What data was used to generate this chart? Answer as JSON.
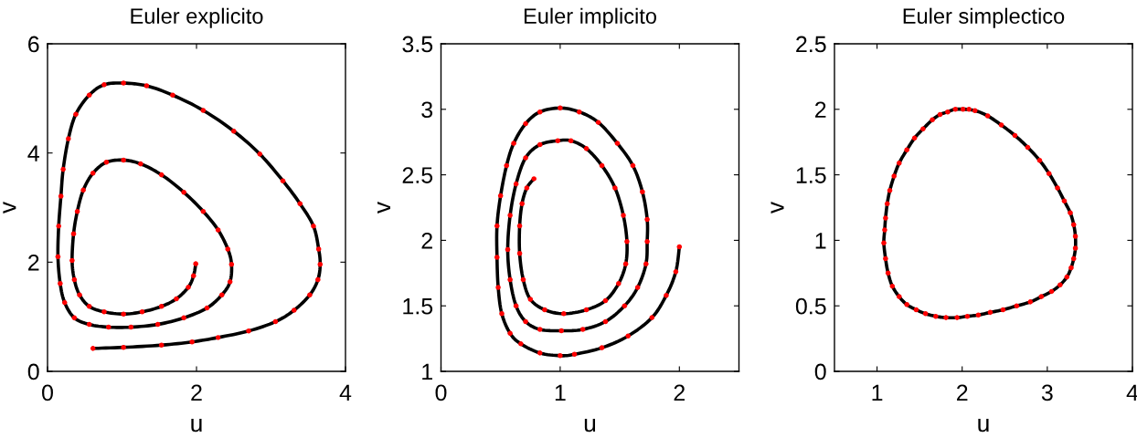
{
  "chart_data": [
    {
      "type": "line",
      "title": "Euler explicito",
      "xlabel": "u",
      "ylabel": "v",
      "xlim": [
        0,
        4
      ],
      "ylim": [
        0,
        6
      ],
      "xticks": [
        0,
        2,
        4
      ],
      "yticks": [
        0,
        2,
        4,
        6
      ],
      "series": [
        {
          "color": "#000000",
          "x": [
            1.99,
            1.96,
            1.89,
            1.73,
            1.53,
            1.27,
            1.02,
            0.76,
            0.56,
            0.43,
            0.36,
            0.33,
            0.35,
            0.4,
            0.48,
            0.61,
            0.79,
            1.02,
            1.25,
            1.53,
            1.83,
            2.09,
            2.29,
            2.42,
            2.47,
            2.45,
            2.34,
            2.14,
            1.83,
            1.48,
            1.12,
            0.82,
            0.56,
            0.36,
            0.23,
            0.17,
            0.14,
            0.15,
            0.18,
            0.21,
            0.28,
            0.38,
            0.56,
            0.76,
            1.02,
            1.33,
            1.68,
            2.09,
            2.5,
            2.85,
            3.16,
            3.39,
            3.57,
            3.64,
            3.66,
            3.63,
            3.52,
            3.31,
            3.06,
            2.7,
            2.29,
            1.94,
            1.53,
            1.02,
            0.61
          ],
          "values": [
            1.97,
            1.75,
            1.54,
            1.33,
            1.19,
            1.09,
            1.05,
            1.09,
            1.19,
            1.4,
            1.68,
            2.03,
            2.52,
            2.93,
            3.32,
            3.63,
            3.83,
            3.87,
            3.8,
            3.6,
            3.28,
            2.93,
            2.59,
            2.24,
            1.96,
            1.64,
            1.4,
            1.16,
            0.98,
            0.86,
            0.81,
            0.81,
            0.86,
            0.98,
            1.26,
            1.61,
            2.1,
            2.66,
            3.21,
            3.7,
            4.26,
            4.71,
            5.06,
            5.25,
            5.28,
            5.23,
            5.06,
            4.78,
            4.4,
            3.98,
            3.49,
            3.07,
            2.66,
            2.24,
            1.96,
            1.68,
            1.4,
            1.12,
            0.91,
            0.74,
            0.62,
            0.54,
            0.48,
            0.44,
            0.42
          ]
        },
        {
          "type": "scatter",
          "color": "#ff0000",
          "marker": "circle",
          "x": [
            1.99,
            1.96,
            1.89,
            1.73,
            1.53,
            1.27,
            1.02,
            0.76,
            0.56,
            0.43,
            0.36,
            0.33,
            0.35,
            0.4,
            0.48,
            0.61,
            0.79,
            1.02,
            1.25,
            1.53,
            1.83,
            2.09,
            2.29,
            2.42,
            2.47,
            2.45,
            2.34,
            2.14,
            1.83,
            1.48,
            1.12,
            0.82,
            0.56,
            0.36,
            0.23,
            0.17,
            0.14,
            0.15,
            0.18,
            0.21,
            0.28,
            0.38,
            0.56,
            0.76,
            1.02,
            1.33,
            1.68,
            2.09,
            2.5,
            2.85,
            3.16,
            3.39,
            3.57,
            3.64,
            3.66,
            3.63,
            3.52,
            3.31,
            3.06,
            2.7,
            2.29,
            1.94,
            1.53,
            1.02,
            0.61
          ],
          "values": [
            1.97,
            1.75,
            1.54,
            1.33,
            1.19,
            1.09,
            1.05,
            1.09,
            1.19,
            1.4,
            1.68,
            2.03,
            2.52,
            2.93,
            3.32,
            3.63,
            3.83,
            3.87,
            3.8,
            3.6,
            3.28,
            2.93,
            2.59,
            2.24,
            1.96,
            1.64,
            1.4,
            1.16,
            0.98,
            0.86,
            0.81,
            0.81,
            0.86,
            0.98,
            1.26,
            1.61,
            2.1,
            2.66,
            3.21,
            3.7,
            4.26,
            4.71,
            5.06,
            5.25,
            5.28,
            5.23,
            5.06,
            4.78,
            4.4,
            3.98,
            3.49,
            3.07,
            2.66,
            2.24,
            1.96,
            1.68,
            1.4,
            1.12,
            0.91,
            0.74,
            0.62,
            0.54,
            0.48,
            0.44,
            0.42
          ]
        }
      ]
    },
    {
      "type": "line",
      "title": "Euler implicito",
      "xlabel": "u",
      "ylabel": "v",
      "xlim": [
        0,
        2.5
      ],
      "ylim": [
        1,
        3.5
      ],
      "xticks": [
        0,
        1,
        2
      ],
      "yticks": [
        1,
        1.5,
        2,
        2.5,
        3,
        3.5
      ],
      "series": [
        {
          "color": "#000000",
          "x": [
            2.0,
            1.97,
            1.89,
            1.77,
            1.57,
            1.35,
            1.12,
            1.0,
            0.83,
            0.67,
            0.58,
            0.51,
            0.48,
            0.47,
            0.47,
            0.5,
            0.55,
            0.61,
            0.71,
            0.83,
            1.0,
            1.16,
            1.32,
            1.48,
            1.61,
            1.69,
            1.73,
            1.73,
            1.72,
            1.65,
            1.54,
            1.38,
            1.19,
            1.01,
            0.83,
            0.71,
            0.63,
            0.58,
            0.56,
            0.58,
            0.63,
            0.71,
            0.83,
            0.98,
            1.09,
            1.22,
            1.35,
            1.46,
            1.53,
            1.56,
            1.55,
            1.49,
            1.38,
            1.22,
            1.03,
            0.87,
            0.75,
            0.69,
            0.66,
            0.66,
            0.68,
            0.72,
            0.78
          ],
          "values": [
            1.95,
            1.76,
            1.58,
            1.41,
            1.27,
            1.18,
            1.13,
            1.12,
            1.14,
            1.21,
            1.29,
            1.44,
            1.64,
            1.87,
            2.11,
            2.34,
            2.57,
            2.74,
            2.89,
            2.98,
            3.01,
            2.98,
            2.9,
            2.74,
            2.57,
            2.37,
            2.16,
            1.99,
            1.82,
            1.64,
            1.5,
            1.38,
            1.32,
            1.31,
            1.32,
            1.38,
            1.5,
            1.7,
            1.93,
            2.19,
            2.43,
            2.63,
            2.73,
            2.76,
            2.76,
            2.7,
            2.57,
            2.4,
            2.19,
            1.99,
            1.82,
            1.67,
            1.54,
            1.47,
            1.44,
            1.47,
            1.55,
            1.7,
            1.9,
            2.11,
            2.28,
            2.4,
            2.47
          ]
        },
        {
          "type": "scatter",
          "color": "#ff0000",
          "marker": "circle",
          "x": [
            2.0,
            1.97,
            1.89,
            1.77,
            1.57,
            1.35,
            1.12,
            1.0,
            0.83,
            0.67,
            0.58,
            0.51,
            0.48,
            0.47,
            0.47,
            0.5,
            0.55,
            0.61,
            0.71,
            0.83,
            1.0,
            1.16,
            1.32,
            1.48,
            1.61,
            1.69,
            1.73,
            1.73,
            1.72,
            1.65,
            1.54,
            1.38,
            1.19,
            1.01,
            0.83,
            0.71,
            0.63,
            0.58,
            0.56,
            0.58,
            0.63,
            0.71,
            0.83,
            0.98,
            1.09,
            1.22,
            1.35,
            1.46,
            1.53,
            1.56,
            1.55,
            1.49,
            1.38,
            1.22,
            1.03,
            0.87,
            0.75,
            0.69,
            0.66,
            0.66,
            0.68,
            0.72,
            0.78
          ],
          "values": [
            1.95,
            1.76,
            1.58,
            1.41,
            1.27,
            1.18,
            1.13,
            1.12,
            1.14,
            1.21,
            1.29,
            1.44,
            1.64,
            1.87,
            2.11,
            2.34,
            2.57,
            2.74,
            2.89,
            2.98,
            3.01,
            2.98,
            2.9,
            2.74,
            2.57,
            2.37,
            2.16,
            1.99,
            1.82,
            1.64,
            1.5,
            1.38,
            1.32,
            1.31,
            1.32,
            1.38,
            1.5,
            1.7,
            1.93,
            2.19,
            2.43,
            2.63,
            2.73,
            2.76,
            2.76,
            2.7,
            2.57,
            2.4,
            2.19,
            1.99,
            1.82,
            1.67,
            1.54,
            1.47,
            1.44,
            1.47,
            1.55,
            1.7,
            1.9,
            2.11,
            2.28,
            2.4,
            2.47
          ]
        }
      ]
    },
    {
      "type": "line",
      "title": "Euler simplectico",
      "xlabel": "u",
      "ylabel": "v",
      "xlim": [
        0.5,
        4
      ],
      "ylim": [
        0,
        2.5
      ],
      "xticks": [
        1,
        2,
        3,
        4
      ],
      "yticks": [
        0,
        0.5,
        1,
        1.5,
        2,
        2.5
      ],
      "series": [
        {
          "color": "#000000",
          "x": [
            2.01,
            2.15,
            2.3,
            2.46,
            2.62,
            2.77,
            2.91,
            3.02,
            3.12,
            3.2,
            3.27,
            3.31,
            3.33,
            3.33,
            3.31,
            3.28,
            3.23,
            3.15,
            3.05,
            2.93,
            2.8,
            2.64,
            2.48,
            2.33,
            2.19,
            2.06,
            1.94,
            1.81,
            1.69,
            1.57,
            1.46,
            1.35,
            1.26,
            1.18,
            1.13,
            1.1,
            1.08,
            1.09,
            1.1,
            1.12,
            1.15,
            1.2,
            1.26,
            1.35,
            1.44,
            1.54,
            1.65,
            1.74,
            1.83,
            1.92,
            2.08
          ],
          "values": [
            2.0,
            1.99,
            1.95,
            1.88,
            1.8,
            1.71,
            1.61,
            1.51,
            1.4,
            1.3,
            1.21,
            1.12,
            1.03,
            0.94,
            0.86,
            0.79,
            0.72,
            0.66,
            0.61,
            0.57,
            0.53,
            0.5,
            0.47,
            0.45,
            0.43,
            0.42,
            0.41,
            0.41,
            0.42,
            0.44,
            0.47,
            0.51,
            0.57,
            0.65,
            0.75,
            0.86,
            0.98,
            1.08,
            1.17,
            1.28,
            1.38,
            1.49,
            1.59,
            1.69,
            1.78,
            1.85,
            1.92,
            1.96,
            1.98,
            2.0,
            2.0
          ]
        },
        {
          "type": "scatter",
          "color": "#ff0000",
          "marker": "circle",
          "x": [
            2.01,
            2.15,
            2.3,
            2.46,
            2.62,
            2.77,
            2.91,
            3.02,
            3.12,
            3.2,
            3.27,
            3.31,
            3.33,
            3.33,
            3.31,
            3.28,
            3.23,
            3.15,
            3.05,
            2.93,
            2.8,
            2.64,
            2.48,
            2.33,
            2.19,
            2.06,
            1.94,
            1.81,
            1.69,
            1.57,
            1.46,
            1.35,
            1.26,
            1.18,
            1.13,
            1.1,
            1.08,
            1.09,
            1.1,
            1.12,
            1.15,
            1.2,
            1.26,
            1.35,
            1.44,
            1.54,
            1.65,
            1.74,
            1.83,
            1.92,
            2.08
          ],
          "values": [
            2.0,
            1.99,
            1.95,
            1.88,
            1.8,
            1.71,
            1.61,
            1.51,
            1.4,
            1.3,
            1.21,
            1.12,
            1.03,
            0.94,
            0.86,
            0.79,
            0.72,
            0.66,
            0.61,
            0.57,
            0.53,
            0.5,
            0.47,
            0.45,
            0.43,
            0.42,
            0.41,
            0.41,
            0.42,
            0.44,
            0.47,
            0.51,
            0.57,
            0.65,
            0.75,
            0.86,
            0.98,
            1.08,
            1.17,
            1.28,
            1.38,
            1.49,
            1.59,
            1.69,
            1.78,
            1.85,
            1.92,
            1.96,
            1.98,
            2.0,
            2.0
          ]
        }
      ]
    }
  ]
}
